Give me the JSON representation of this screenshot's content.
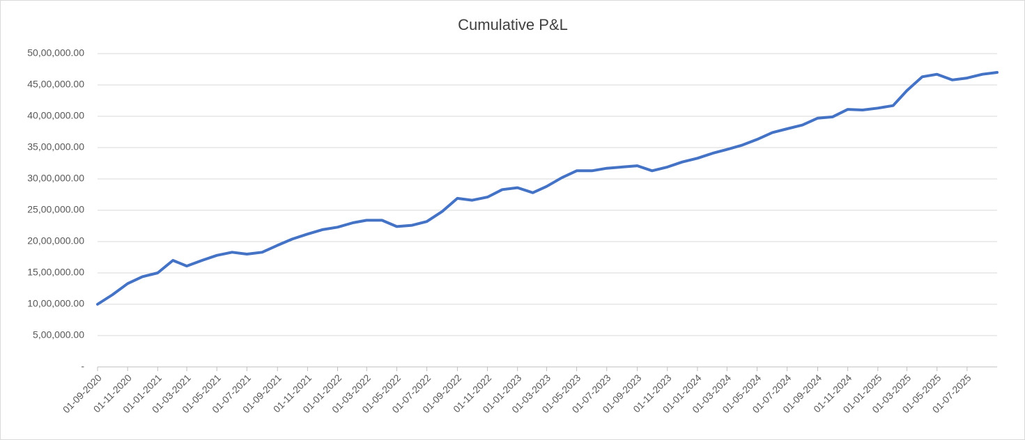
{
  "chart_data": {
    "type": "line",
    "title": "Cumulative P&L",
    "x": [
      "01-09-2020",
      "01-10-2020",
      "01-11-2020",
      "01-12-2020",
      "01-01-2021",
      "01-02-2021",
      "01-03-2021",
      "01-04-2021",
      "01-05-2021",
      "01-06-2021",
      "01-07-2021",
      "01-08-2021",
      "01-09-2021",
      "01-10-2021",
      "01-11-2021",
      "01-12-2021",
      "01-01-2022",
      "01-02-2022",
      "01-03-2022",
      "01-04-2022",
      "01-05-2022",
      "01-06-2022",
      "01-07-2022",
      "01-08-2022",
      "01-09-2022",
      "01-10-2022",
      "01-11-2022",
      "01-12-2022",
      "01-01-2023",
      "01-02-2023",
      "01-03-2023",
      "01-04-2023",
      "01-05-2023",
      "01-06-2023",
      "01-07-2023",
      "01-08-2023",
      "01-09-2023",
      "01-10-2023",
      "01-11-2023",
      "01-12-2023",
      "01-01-2024",
      "01-02-2024",
      "01-03-2024",
      "01-04-2024",
      "01-05-2024",
      "01-06-2024",
      "01-07-2024",
      "01-08-2024",
      "01-09-2024",
      "01-10-2024",
      "01-11-2024",
      "01-12-2024",
      "01-01-2025",
      "01-02-2025",
      "01-03-2025",
      "01-04-2025",
      "01-05-2025",
      "01-06-2025",
      "01-07-2025",
      "01-08-2025",
      "31-08-2025"
    ],
    "series": [
      {
        "name": "Cumulative P&L",
        "color": "#4472c4",
        "values": [
          1000000,
          1150000,
          1330000,
          1440000,
          1500000,
          1700000,
          1610000,
          1700000,
          1780000,
          1830000,
          1800000,
          1830000,
          1940000,
          2040000,
          2120000,
          2190000,
          2230000,
          2300000,
          2340000,
          2340000,
          2240000,
          2260000,
          2320000,
          2480000,
          2690000,
          2660000,
          2710000,
          2830000,
          2860000,
          2780000,
          2880000,
          3020000,
          3130000,
          3130000,
          3170000,
          3190000,
          3210000,
          3130000,
          3190000,
          3270000,
          3330000,
          3410000,
          3470000,
          3540000,
          3630000,
          3740000,
          3800000,
          3860000,
          3970000,
          3990000,
          4110000,
          4100000,
          4130000,
          4170000,
          4410000,
          4630000,
          4670000,
          4580000,
          4610000,
          4670000,
          4700000
        ]
      }
    ],
    "xlim": [
      "01-09-2020",
      "31-08-2025"
    ],
    "xticks": [
      "01-09-2020",
      "01-11-2020",
      "01-01-2021",
      "01-03-2021",
      "01-05-2021",
      "01-07-2021",
      "01-09-2021",
      "01-11-2021",
      "01-01-2022",
      "01-03-2022",
      "01-05-2022",
      "01-07-2022",
      "01-09-2022",
      "01-11-2022",
      "01-01-2023",
      "01-03-2023",
      "01-05-2023",
      "01-07-2023",
      "01-09-2023",
      "01-11-2023",
      "01-01-2024",
      "01-03-2024",
      "01-05-2024",
      "01-07-2024",
      "01-09-2024",
      "01-11-2024",
      "01-01-2025",
      "01-03-2025",
      "01-05-2025",
      "01-07-2025"
    ],
    "ylim": [
      0,
      5000000
    ],
    "yticks": [
      {
        "value": 0,
        "label": "-"
      },
      {
        "value": 500000,
        "label": "5,00,000.00"
      },
      {
        "value": 1000000,
        "label": "10,00,000.00"
      },
      {
        "value": 1500000,
        "label": "15,00,000.00"
      },
      {
        "value": 2000000,
        "label": "20,00,000.00"
      },
      {
        "value": 2500000,
        "label": "25,00,000.00"
      },
      {
        "value": 3000000,
        "label": "30,00,000.00"
      },
      {
        "value": 3500000,
        "label": "35,00,000.00"
      },
      {
        "value": 4000000,
        "label": "40,00,000.00"
      },
      {
        "value": 4500000,
        "label": "45,00,000.00"
      },
      {
        "value": 5000000,
        "label": "50,00,000.00"
      }
    ],
    "grid": true
  }
}
